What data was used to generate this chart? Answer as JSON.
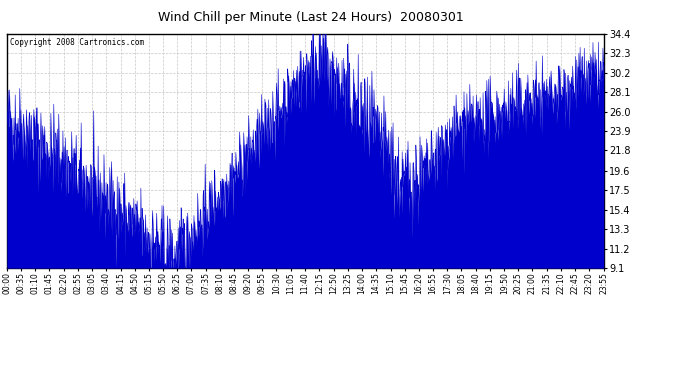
{
  "title": "Wind Chill per Minute (Last 24 Hours)  20080301",
  "copyright": "Copyright 2008 Cartronics.com",
  "line_color": "#0000cc",
  "bg_color": "#ffffff",
  "plot_bg_color": "#ffffff",
  "grid_color": "#c8c8c8",
  "yticks": [
    9.1,
    11.2,
    13.3,
    15.4,
    17.5,
    19.6,
    21.8,
    23.9,
    26.0,
    28.1,
    30.2,
    32.3,
    34.4
  ],
  "ylim": [
    9.1,
    34.4
  ],
  "xtick_labels": [
    "00:00",
    "00:35",
    "01:10",
    "01:45",
    "02:20",
    "02:55",
    "03:05",
    "03:40",
    "04:15",
    "04:50",
    "05:15",
    "05:50",
    "06:25",
    "07:00",
    "07:35",
    "08:10",
    "08:45",
    "09:20",
    "09:55",
    "10:30",
    "11:05",
    "11:40",
    "12:15",
    "12:50",
    "13:25",
    "14:00",
    "14:35",
    "15:10",
    "15:45",
    "16:20",
    "16:55",
    "17:30",
    "18:05",
    "18:40",
    "19:15",
    "19:50",
    "20:25",
    "21:00",
    "21:35",
    "22:10",
    "22:45",
    "23:20",
    "23:55"
  ],
  "n_minutes": 1440,
  "border_color": "#000000"
}
